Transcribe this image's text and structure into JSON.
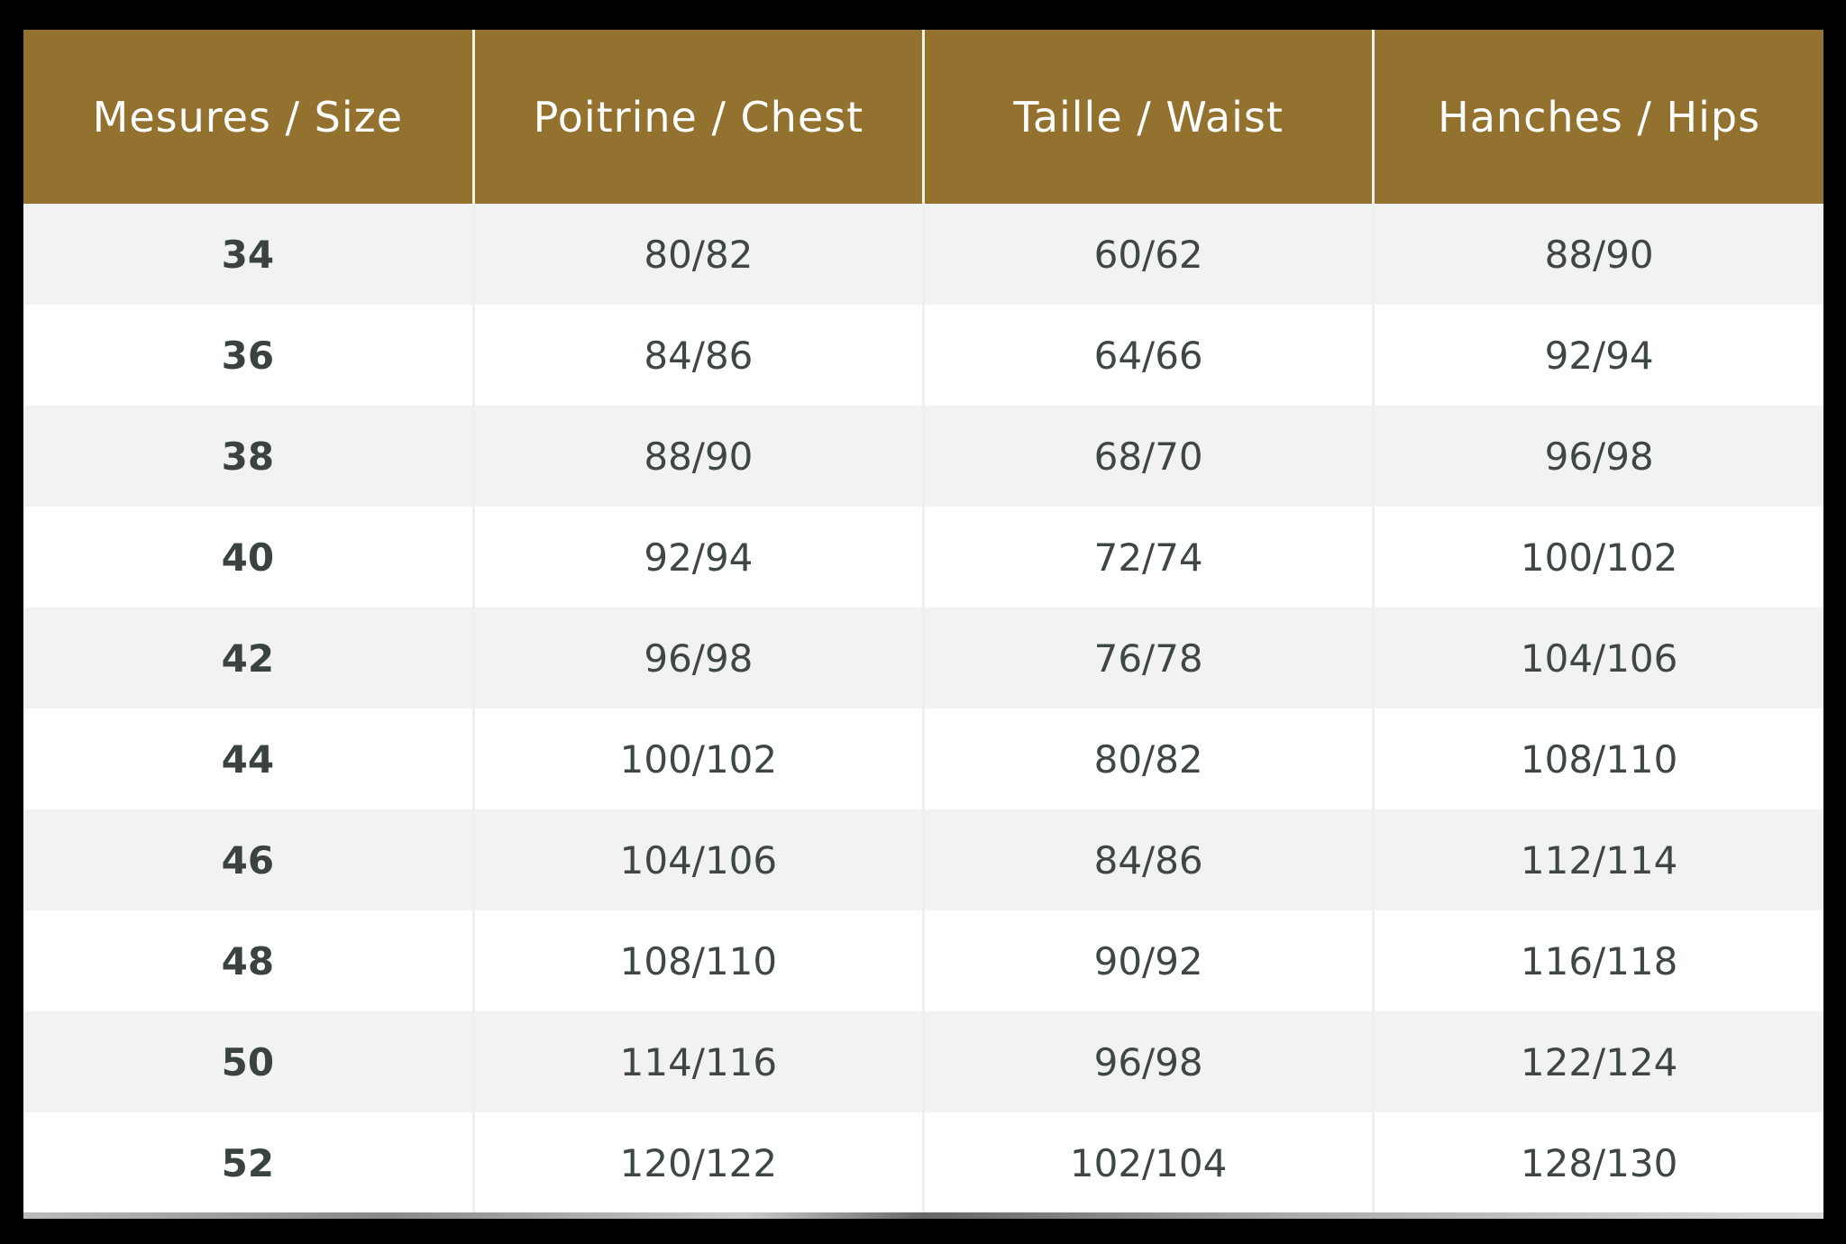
{
  "colors": {
    "header_bg": "#93712f",
    "header_text": "#ffffff",
    "row_alt": "#f2f2f2",
    "text": "#3f4745"
  },
  "headers": [
    "Mesures / Size",
    "Poitrine / Chest",
    "Taille / Waist",
    "Hanches / Hips"
  ],
  "rows": [
    [
      "34",
      "80/82",
      "60/62",
      "88/90"
    ],
    [
      "36",
      "84/86",
      "64/66",
      "92/94"
    ],
    [
      "38",
      "88/90",
      "68/70",
      "96/98"
    ],
    [
      "40",
      "92/94",
      "72/74",
      "100/102"
    ],
    [
      "42",
      "96/98",
      "76/78",
      "104/106"
    ],
    [
      "44",
      "100/102",
      "80/82",
      "108/110"
    ],
    [
      "46",
      "104/106",
      "84/86",
      "112/114"
    ],
    [
      "48",
      "108/110",
      "90/92",
      "116/118"
    ],
    [
      "50",
      "114/116",
      "96/98",
      "122/124"
    ],
    [
      "52",
      "120/122",
      "102/104",
      "128/130"
    ]
  ]
}
